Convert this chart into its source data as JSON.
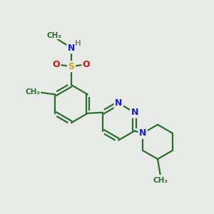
{
  "background_color": "#e8eae8",
  "bond_color": "#2d6e2d",
  "atom_colors": {
    "N": "#1a1aee",
    "S": "#ccaa00",
    "O": "#dd1111",
    "H": "#888888",
    "C": "#2d6e2d"
  },
  "figsize": [
    3.0,
    3.0
  ],
  "dpi": 100,
  "xlim": [
    0,
    10
  ],
  "ylim": [
    0,
    10
  ]
}
